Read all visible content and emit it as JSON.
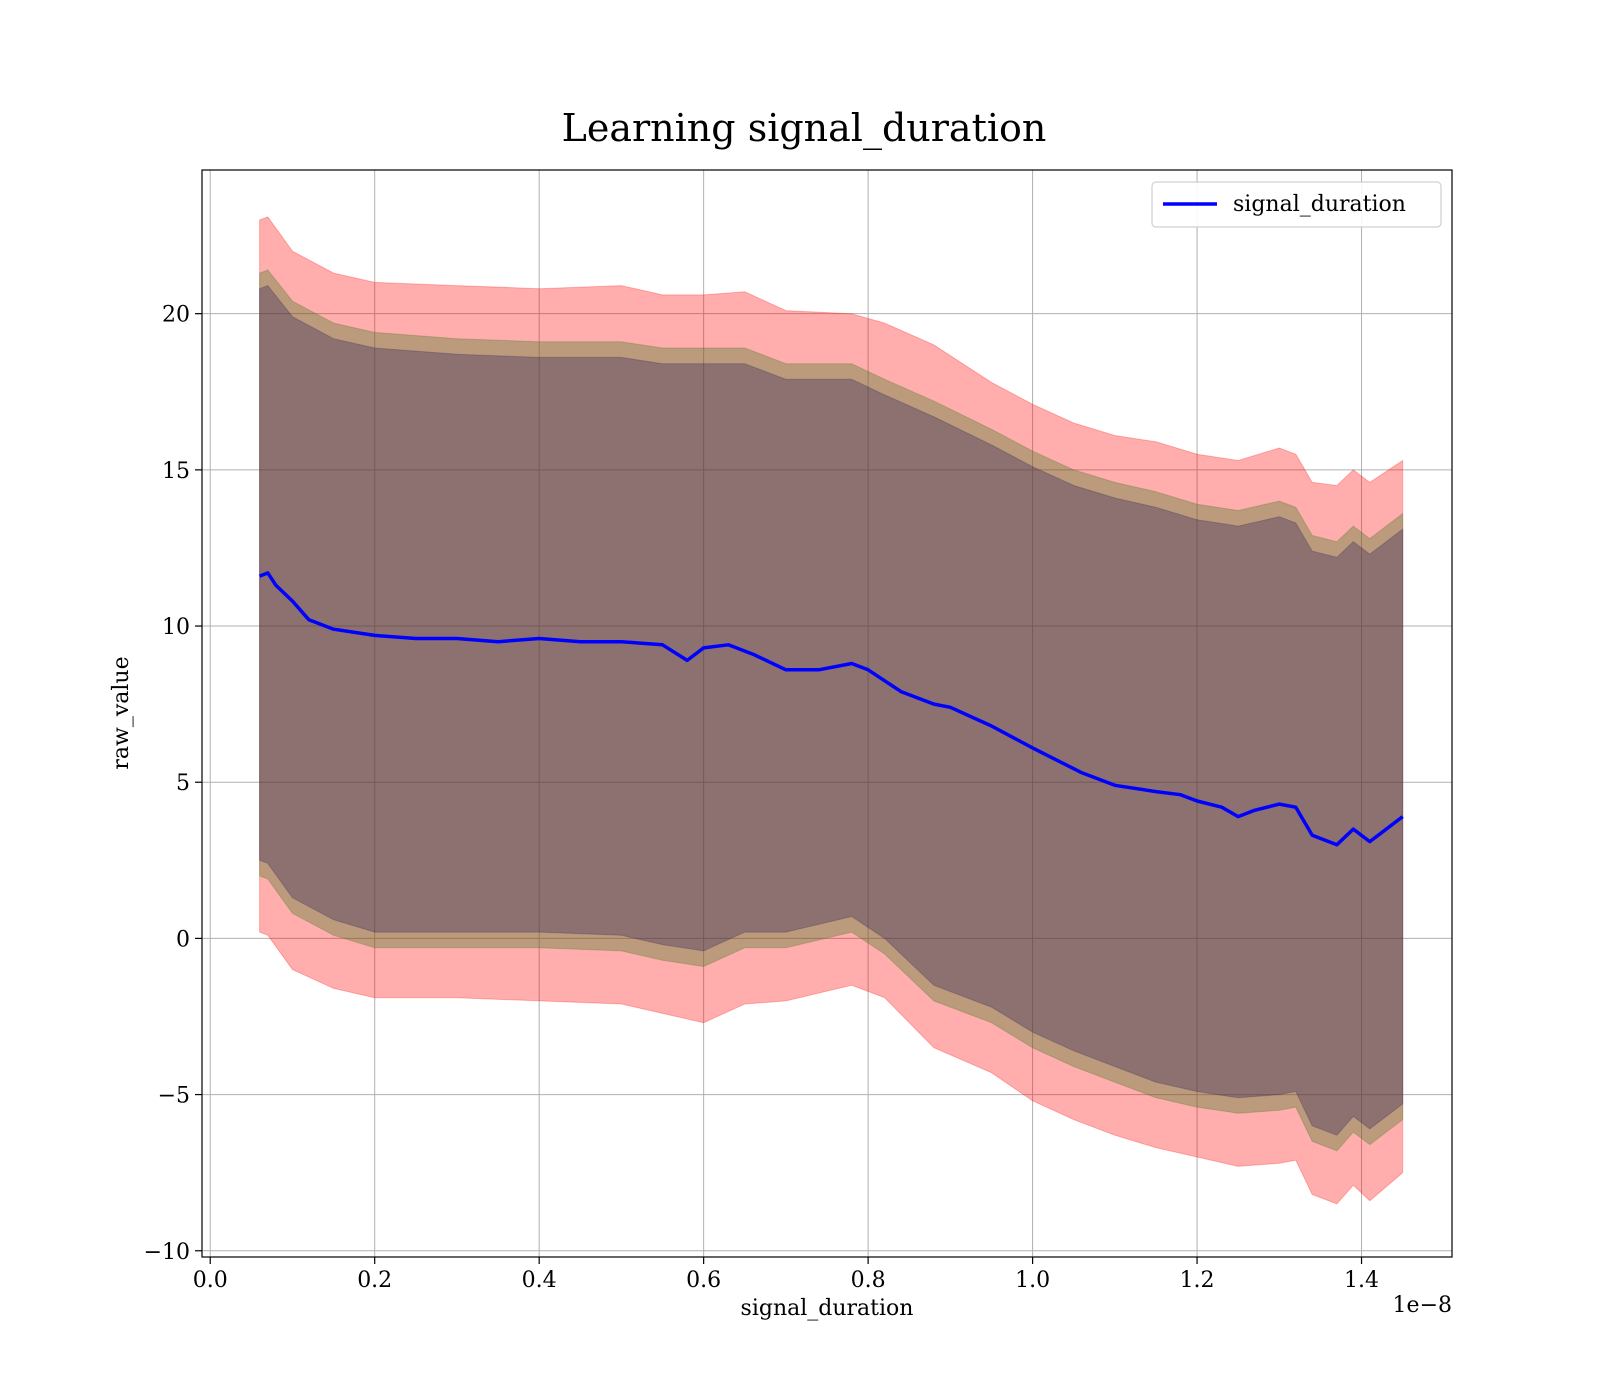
{
  "chart_data": {
    "type": "line",
    "title": "Learning signal_duration",
    "xlabel": "signal_duration",
    "ylabel": "raw_value",
    "x_offset_label": "1e−8",
    "xlim": [
      -0.01,
      1.51
    ],
    "ylim": [
      -10.2,
      24.6
    ],
    "x_ticks": [
      0.0,
      0.2,
      0.4,
      0.6,
      0.8,
      1.0,
      1.2,
      1.4
    ],
    "x_tick_labels": [
      "0.0",
      "0.2",
      "0.4",
      "0.6",
      "0.8",
      "1.0",
      "1.2",
      "1.4"
    ],
    "y_ticks": [
      -10,
      -5,
      0,
      5,
      10,
      15,
      20
    ],
    "y_tick_labels": [
      "−10",
      "−5",
      "0",
      "5",
      "10",
      "15",
      "20"
    ],
    "grid": true,
    "legend": {
      "position": "top-right",
      "entries": [
        "signal_duration"
      ]
    },
    "series": [
      {
        "name": "signal_duration",
        "color": "#0000ff",
        "x": [
          0.06,
          0.07,
          0.08,
          0.1,
          0.12,
          0.15,
          0.2,
          0.25,
          0.3,
          0.35,
          0.4,
          0.45,
          0.5,
          0.55,
          0.58,
          0.6,
          0.63,
          0.66,
          0.7,
          0.74,
          0.78,
          0.8,
          0.84,
          0.88,
          0.9,
          0.95,
          1.0,
          1.03,
          1.06,
          1.1,
          1.15,
          1.18,
          1.2,
          1.23,
          1.25,
          1.27,
          1.3,
          1.32,
          1.34,
          1.37,
          1.39,
          1.41,
          1.45
        ],
        "y": [
          11.6,
          11.7,
          11.3,
          10.8,
          10.2,
          9.9,
          9.7,
          9.6,
          9.6,
          9.5,
          9.6,
          9.5,
          9.5,
          9.4,
          8.9,
          9.3,
          9.4,
          9.1,
          8.6,
          8.6,
          8.8,
          8.6,
          7.9,
          7.5,
          7.4,
          6.8,
          6.1,
          5.7,
          5.3,
          4.9,
          4.7,
          4.6,
          4.4,
          4.2,
          3.9,
          4.1,
          4.3,
          4.2,
          3.3,
          3.0,
          3.5,
          3.1,
          3.9
        ]
      }
    ],
    "bands": [
      {
        "color": "#ff0000",
        "opacity": 0.32,
        "x": [
          0.06,
          0.07,
          0.1,
          0.15,
          0.2,
          0.3,
          0.4,
          0.5,
          0.55,
          0.6,
          0.65,
          0.7,
          0.78,
          0.82,
          0.88,
          0.95,
          1.0,
          1.05,
          1.1,
          1.15,
          1.2,
          1.25,
          1.3,
          1.32,
          1.34,
          1.37,
          1.39,
          1.41,
          1.45
        ],
        "upper": [
          23.0,
          23.1,
          22.0,
          21.3,
          21.0,
          20.9,
          20.8,
          20.9,
          20.6,
          20.6,
          20.7,
          20.1,
          20.0,
          19.7,
          19.0,
          17.8,
          17.1,
          16.5,
          16.1,
          15.9,
          15.5,
          15.3,
          15.7,
          15.5,
          14.6,
          14.5,
          15.0,
          14.6,
          15.3
        ],
        "lower": [
          0.2,
          0.1,
          -1.0,
          -1.6,
          -1.9,
          -1.9,
          -2.0,
          -2.1,
          -2.4,
          -2.7,
          -2.1,
          -2.0,
          -1.5,
          -1.9,
          -3.5,
          -4.3,
          -5.2,
          -5.8,
          -6.3,
          -6.7,
          -7.0,
          -7.3,
          -7.2,
          -7.1,
          -8.2,
          -8.5,
          -7.9,
          -8.4,
          -7.5
        ]
      },
      {
        "color": "#3d7a1f",
        "opacity": 0.35,
        "x": [
          0.06,
          0.07,
          0.1,
          0.15,
          0.2,
          0.3,
          0.4,
          0.5,
          0.55,
          0.6,
          0.65,
          0.7,
          0.78,
          0.82,
          0.88,
          0.95,
          1.0,
          1.05,
          1.1,
          1.15,
          1.2,
          1.25,
          1.3,
          1.32,
          1.34,
          1.37,
          1.39,
          1.41,
          1.45
        ],
        "upper": [
          21.3,
          21.4,
          20.4,
          19.7,
          19.4,
          19.2,
          19.1,
          19.1,
          18.9,
          18.9,
          18.9,
          18.4,
          18.4,
          17.9,
          17.2,
          16.3,
          15.6,
          15.0,
          14.6,
          14.3,
          13.9,
          13.7,
          14.0,
          13.8,
          12.9,
          12.7,
          13.2,
          12.8,
          13.6
        ],
        "lower": [
          2.0,
          1.9,
          0.8,
          0.1,
          -0.3,
          -0.3,
          -0.3,
          -0.4,
          -0.7,
          -0.9,
          -0.3,
          -0.3,
          0.2,
          -0.5,
          -2.0,
          -2.7,
          -3.5,
          -4.1,
          -4.6,
          -5.1,
          -5.4,
          -5.6,
          -5.5,
          -5.4,
          -6.5,
          -6.8,
          -6.2,
          -6.6,
          -5.8
        ]
      },
      {
        "color": "#2a1a5e",
        "opacity": 0.32,
        "x": [
          0.06,
          0.07,
          0.1,
          0.15,
          0.2,
          0.3,
          0.4,
          0.5,
          0.55,
          0.6,
          0.65,
          0.7,
          0.78,
          0.82,
          0.88,
          0.95,
          1.0,
          1.05,
          1.1,
          1.15,
          1.2,
          1.25,
          1.3,
          1.32,
          1.34,
          1.37,
          1.39,
          1.41,
          1.45
        ],
        "upper": [
          20.8,
          20.9,
          19.9,
          19.2,
          18.9,
          18.7,
          18.6,
          18.6,
          18.4,
          18.4,
          18.4,
          17.9,
          17.9,
          17.4,
          16.7,
          15.8,
          15.1,
          14.5,
          14.1,
          13.8,
          13.4,
          13.2,
          13.5,
          13.3,
          12.4,
          12.2,
          12.7,
          12.3,
          13.1
        ],
        "lower": [
          2.5,
          2.4,
          1.3,
          0.6,
          0.2,
          0.2,
          0.2,
          0.1,
          -0.2,
          -0.4,
          0.2,
          0.2,
          0.7,
          0.0,
          -1.5,
          -2.2,
          -3.0,
          -3.6,
          -4.1,
          -4.6,
          -4.9,
          -5.1,
          -5.0,
          -4.9,
          -6.0,
          -6.3,
          -5.7,
          -6.1,
          -5.3
        ]
      }
    ]
  }
}
